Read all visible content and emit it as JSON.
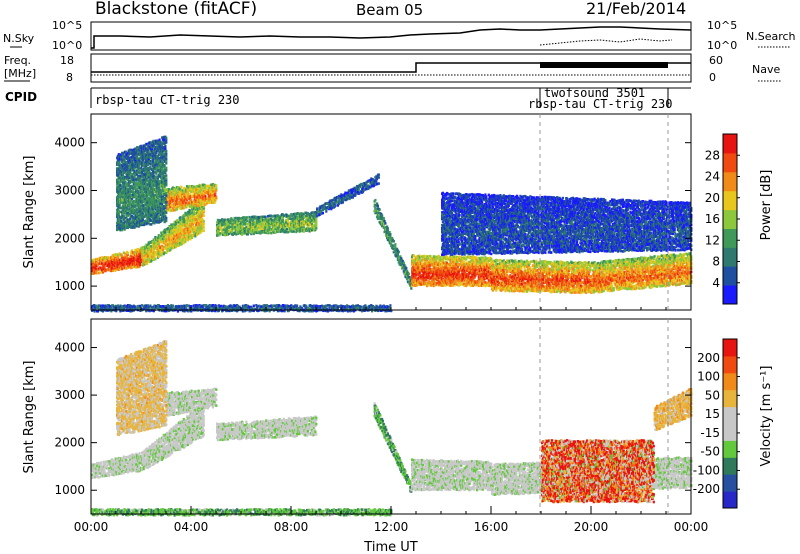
{
  "header": {
    "station": "Blackstone (fitACF)",
    "beam": "Beam 05",
    "date": "21/Feb/2014"
  },
  "top_panels": {
    "nsky_label": "N.Sky",
    "nsearch_label": "N.Search",
    "count_ticks_left": [
      "10^5",
      "10^0"
    ],
    "count_ticks_right": [
      "10^5",
      "10^0"
    ],
    "freq_label": "Freq.",
    "freq_unit": "[MHz]",
    "freq_ticks": [
      "18",
      "8"
    ],
    "nave_label": "Nave",
    "nave_ticks": [
      "60",
      "0"
    ],
    "cpid_label": "CPID",
    "cpid_entries": [
      {
        "text": "rbsp-tau CT-trig 230",
        "start_h": 0.0
      },
      {
        "text": "twofsound 3501",
        "start_h": 18.0
      },
      {
        "text": "rbsp-tau CT-trig 230",
        "start_h": 18.0
      }
    ]
  },
  "colors": {
    "power_scale": [
      "#1a1aff",
      "#1f4fa0",
      "#2e7a6e",
      "#3f9a5a",
      "#8dc83c",
      "#e8c61e",
      "#f08b1a",
      "#f04a10",
      "#e81410"
    ],
    "velocity_scale": [
      "#2828c8",
      "#2850a0",
      "#2e7a5a",
      "#62c83c",
      "#c8c8c8",
      "#c8c8c8",
      "#e8b43c",
      "#f08b1a",
      "#f04a10",
      "#e81410"
    ]
  },
  "chart_data": [
    {
      "type": "heatmap",
      "name": "power-panel",
      "xlabel": "",
      "ylabel": "Slant Range [km]",
      "xlim": [
        0,
        24
      ],
      "ylim": [
        500,
        4600
      ],
      "yticks": [
        1000,
        2000,
        3000,
        4000
      ],
      "colorbar": {
        "label": "Power [dB]",
        "range": [
          0,
          32
        ],
        "ticks": [
          4,
          8,
          12,
          16,
          20,
          24,
          28
        ]
      },
      "bands": [
        {
          "t": [
            0.0,
            2.0
          ],
          "r_from": [
            1300,
            1450
          ],
          "r_to": [
            1600,
            1850
          ],
          "level": 0.85
        },
        {
          "t": [
            2.0,
            4.5
          ],
          "r_from": [
            1450,
            2200
          ],
          "r_to": [
            1850,
            2900
          ],
          "level": 0.6
        },
        {
          "t": [
            3.0,
            5.0
          ],
          "r_from": [
            2600,
            2800
          ],
          "r_to": [
            3100,
            3200
          ],
          "level": 0.7
        },
        {
          "t": [
            1.0,
            3.0
          ],
          "r_from": [
            2200,
            2400
          ],
          "r_to": [
            3800,
            4200
          ],
          "level": 0.3
        },
        {
          "t": [
            5.0,
            9.0
          ],
          "r_from": [
            2100,
            2200
          ],
          "r_to": [
            2450,
            2600
          ],
          "level": 0.45
        },
        {
          "t": [
            9.0,
            11.5
          ],
          "r_from": [
            2500,
            3200
          ],
          "r_to": [
            2700,
            3400
          ],
          "level": 0.2
        },
        {
          "t": [
            11.3,
            12.8
          ],
          "r_from": [
            2600,
            950
          ],
          "r_to": [
            2900,
            1150
          ],
          "level": 0.35
        },
        {
          "t": [
            12.8,
            16.0
          ],
          "r_from": [
            1050,
            1050
          ],
          "r_to": [
            1700,
            1650
          ],
          "level": 0.8
        },
        {
          "t": [
            16.0,
            20.0
          ],
          "r_from": [
            950,
            900
          ],
          "r_to": [
            1600,
            1550
          ],
          "level": 0.75
        },
        {
          "t": [
            20.0,
            24.0
          ],
          "r_from": [
            900,
            1100
          ],
          "r_to": [
            1550,
            1750
          ],
          "level": 0.7
        },
        {
          "t": [
            14.0,
            24.0
          ],
          "r_from": [
            1700,
            1800
          ],
          "r_to": [
            3000,
            2800
          ],
          "level": 0.15
        },
        {
          "t": [
            0.0,
            12.0
          ],
          "r_from": [
            520,
            520
          ],
          "r_to": [
            650,
            650
          ],
          "level": 0.2
        }
      ]
    },
    {
      "type": "heatmap",
      "name": "velocity-panel",
      "xlabel": "Time UT",
      "ylabel": "Slant Range [km]",
      "xlim": [
        0,
        24
      ],
      "ylim": [
        500,
        4600
      ],
      "yticks": [
        1000,
        2000,
        3000,
        4000
      ],
      "xticks": [
        "00:00",
        "04:00",
        "08:00",
        "12:00",
        "16:00",
        "20:00",
        "00:00"
      ],
      "colorbar": {
        "label": "Velocity [m s⁻¹]",
        "ticks": [
          "200",
          "100",
          "50",
          "15",
          "-15",
          "-50",
          "-100",
          "-200"
        ]
      },
      "bands": [
        {
          "t": [
            0.0,
            2.0
          ],
          "r_from": [
            1300,
            1450
          ],
          "r_to": [
            1600,
            1850
          ],
          "level": 0.45
        },
        {
          "t": [
            2.0,
            4.5
          ],
          "r_from": [
            1450,
            2200
          ],
          "r_to": [
            1850,
            2900
          ],
          "level": 0.45
        },
        {
          "t": [
            3.0,
            5.0
          ],
          "r_from": [
            2600,
            2800
          ],
          "r_to": [
            3100,
            3200
          ],
          "level": 0.45
        },
        {
          "t": [
            1.0,
            3.0
          ],
          "r_from": [
            2200,
            2400
          ],
          "r_to": [
            3800,
            4200
          ],
          "level": 0.62
        },
        {
          "t": [
            5.0,
            9.0
          ],
          "r_from": [
            2100,
            2200
          ],
          "r_to": [
            2450,
            2600
          ],
          "level": 0.45
        },
        {
          "t": [
            11.3,
            12.8
          ],
          "r_from": [
            2600,
            950
          ],
          "r_to": [
            2900,
            1150
          ],
          "level": 0.33
        },
        {
          "t": [
            12.8,
            16.0
          ],
          "r_from": [
            1050,
            1050
          ],
          "r_to": [
            1700,
            1650
          ],
          "level": 0.45
        },
        {
          "t": [
            16.0,
            24.0
          ],
          "r_from": [
            950,
            1100
          ],
          "r_to": [
            1600,
            1750
          ],
          "level": 0.45
        },
        {
          "t": [
            18.0,
            22.5
          ],
          "r_from": [
            800,
            800
          ],
          "r_to": [
            2100,
            2100
          ],
          "level": 0.8
        },
        {
          "t": [
            22.5,
            24.0
          ],
          "r_from": [
            2300,
            2600
          ],
          "r_to": [
            2800,
            3200
          ],
          "level": 0.65
        },
        {
          "t": [
            0.0,
            12.0
          ],
          "r_from": [
            520,
            520
          ],
          "r_to": [
            650,
            650
          ],
          "level": 0.33
        }
      ]
    }
  ]
}
